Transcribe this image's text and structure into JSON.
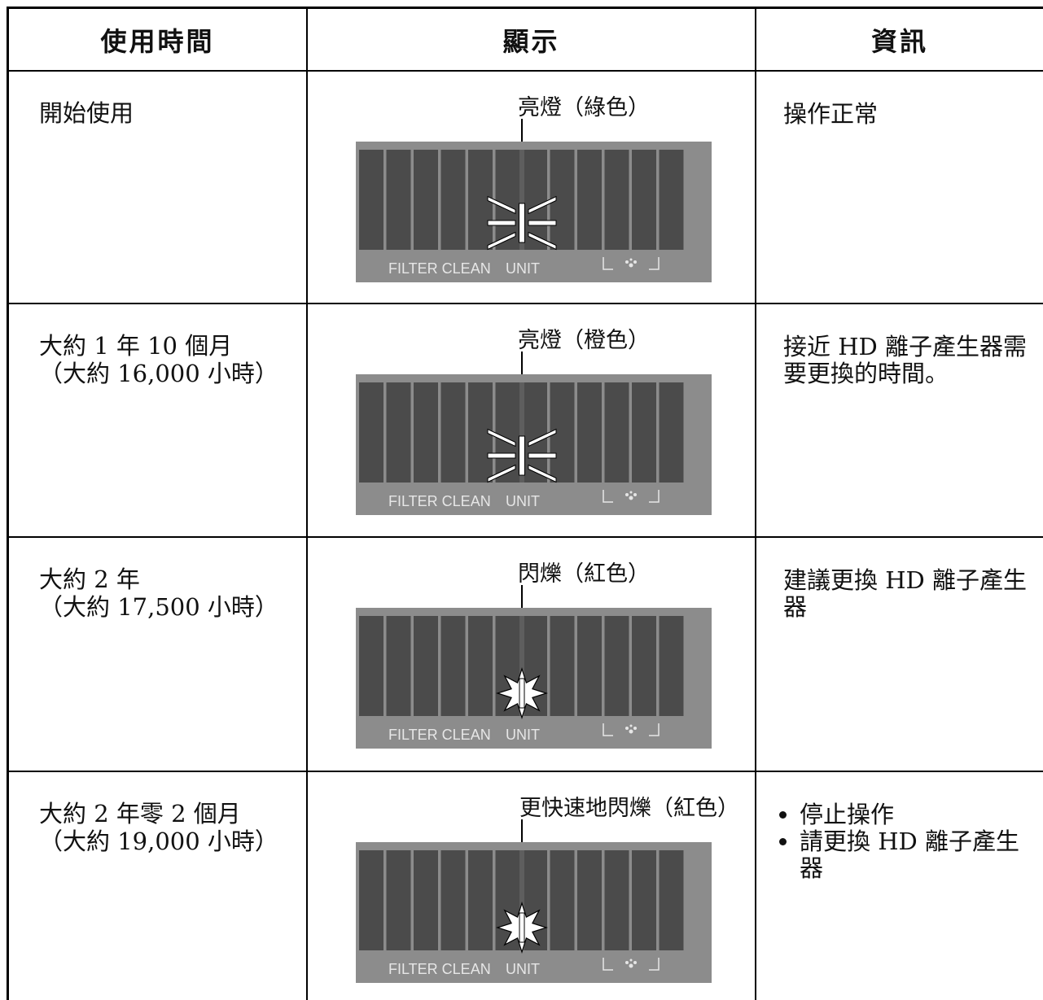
{
  "header": {
    "columns": [
      "使用時間",
      "顯示",
      "資訊"
    ]
  },
  "panel": {
    "labels": [
      "FILTER CLEAN",
      "UNIT"
    ]
  },
  "rows": [
    {
      "time": [
        "開始使用"
      ],
      "display": "亮燈（綠色）",
      "info": [
        "操作正常"
      ]
    },
    {
      "time": [
        "大約 1 年 10 個月",
        "（大約 16,000 小時）"
      ],
      "display": "亮燈（橙色）",
      "info": [
        "接近 HD 離子產生器需要更換的時間。"
      ]
    },
    {
      "time": [
        "大約 2 年",
        "（大約 17,500 小時）"
      ],
      "display": "閃爍（紅色）",
      "info": [
        "建議更換 HD 離子產生器"
      ]
    },
    {
      "time": [
        "大約 2 年零 2 個月",
        "（大約 19,000 小時）"
      ],
      "display": "更快速地閃爍（紅色）",
      "info": [
        "停止操作",
        "請更換 HD 離子產生器"
      ]
    }
  ]
}
